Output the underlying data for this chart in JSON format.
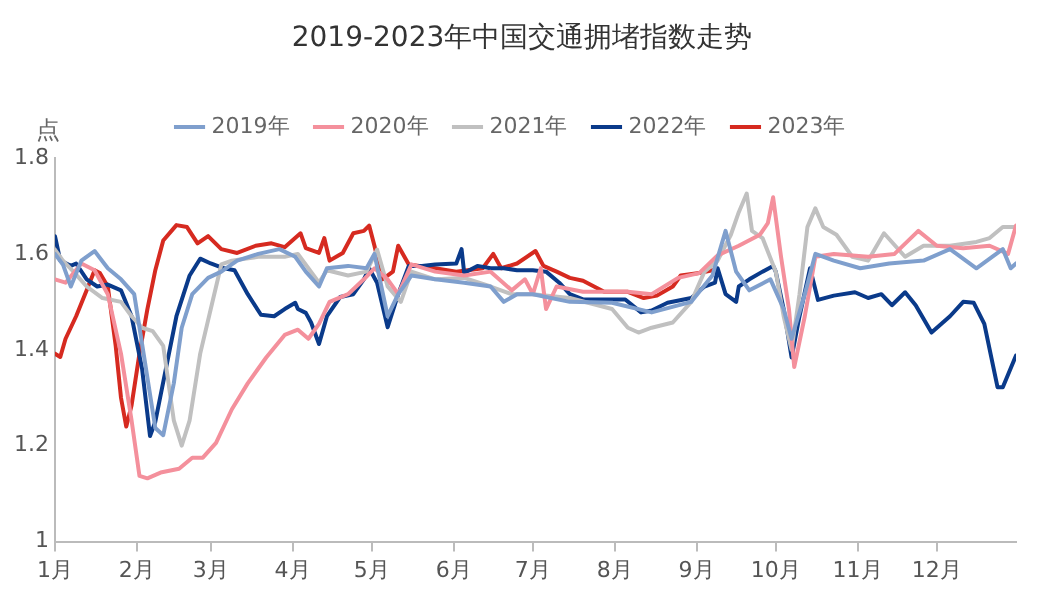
{
  "chart_data": {
    "type": "line",
    "title": "2019-2023年中国交通拥堵指数走势",
    "ylabel": "点",
    "xlim": [
      "--01-01",
      "--12-31"
    ],
    "xticks": [
      {
        "value": "--01-01",
        "label": "1月"
      },
      {
        "value": "--02-01",
        "label": "2月"
      },
      {
        "value": "--03-01",
        "label": "3月"
      },
      {
        "value": "--04-01",
        "label": "4月"
      },
      {
        "value": "--05-01",
        "label": "5月"
      },
      {
        "value": "--06-01",
        "label": "6月"
      },
      {
        "value": "--07-01",
        "label": "7月"
      },
      {
        "value": "--08-01",
        "label": "8月"
      },
      {
        "value": "--09-01",
        "label": "9月"
      },
      {
        "value": "--10-01",
        "label": "10月"
      },
      {
        "value": "--11-01",
        "label": "11月"
      },
      {
        "value": "--12-01",
        "label": "12月"
      }
    ],
    "ylim": [
      1,
      1.8
    ],
    "yticks": [
      1,
      1.2,
      1.4,
      1.6,
      1.8
    ],
    "grid": false,
    "legend": "top",
    "marker": "none",
    "line_style": "solid",
    "series": [
      {
        "name": "2019年",
        "color": "#7f9fcd",
        "x": [
          "--01-01",
          "--01-04",
          "--01-07",
          "--01-11",
          "--01-16",
          "--01-21",
          "--01-26",
          "--01-31",
          "--02-04",
          "--02-08",
          "--02-11",
          "--02-15",
          "--02-18",
          "--02-22",
          "--02-28",
          "--03-05",
          "--03-11",
          "--03-19",
          "--03-27",
          "--04-02",
          "--04-06",
          "--04-11",
          "--04-14",
          "--04-22",
          "--04-29",
          "--05-02",
          "--05-07",
          "--05-11",
          "--05-16",
          "--05-25",
          "--06-05",
          "--06-15",
          "--06-20",
          "--06-25",
          "--07-01",
          "--07-15",
          "--07-31",
          "--08-15",
          "--08-30",
          "--09-07",
          "--09-12",
          "--09-16",
          "--09-21",
          "--09-29",
          "--10-04",
          "--10-07",
          "--10-12",
          "--10-16",
          "--10-23",
          "--11-02",
          "--11-13",
          "--11-26",
          "--12-06",
          "--12-16",
          "--12-26",
          "--12-29",
          "--12-31"
        ],
        "values": [
          1.6,
          1.578,
          1.532,
          1.586,
          1.606,
          1.57,
          1.547,
          1.516,
          1.377,
          1.237,
          1.222,
          1.33,
          1.446,
          1.516,
          1.55,
          1.563,
          1.586,
          1.6,
          1.61,
          1.594,
          1.563,
          1.532,
          1.57,
          1.575,
          1.57,
          1.6,
          1.47,
          1.516,
          1.555,
          1.547,
          1.54,
          1.532,
          1.5,
          1.516,
          1.516,
          1.5,
          1.498,
          1.478,
          1.5,
          1.555,
          1.648,
          1.563,
          1.524,
          1.547,
          1.485,
          1.423,
          1.516,
          1.6,
          1.586,
          1.57,
          1.58,
          1.586,
          1.61,
          1.57,
          1.61,
          1.57,
          1.58
        ]
      },
      {
        "name": "2020年",
        "color": "#f4909c",
        "x": [
          "--01-01",
          "--01-05",
          "--01-11",
          "--01-16",
          "--01-21",
          "--01-26",
          "--01-30",
          "--02-02",
          "--02-05",
          "--02-10",
          "--02-17",
          "--02-22",
          "--02-26",
          "--03-03",
          "--03-09",
          "--03-15",
          "--03-22",
          "--03-29",
          "--04-03",
          "--04-07",
          "--04-11",
          "--04-15",
          "--04-22",
          "--04-28",
          "--05-02",
          "--05-07",
          "--05-11",
          "--05-16",
          "--05-25",
          "--06-05",
          "--06-15",
          "--06-23",
          "--06-28",
          "--07-01",
          "--07-04",
          "--07-06",
          "--07-10",
          "--07-20",
          "--08-06",
          "--08-15",
          "--08-25",
          "--09-02",
          "--09-09",
          "--09-17",
          "--09-25",
          "--09-28",
          "--09-30",
          "--10-03",
          "--10-06",
          "--10-08",
          "--10-12",
          "--10-16",
          "--10-23",
          "--11-05",
          "--11-15",
          "--11-24",
          "--12-01",
          "--12-11",
          "--12-21",
          "--12-28",
          "--12-31"
        ],
        "values": [
          1.547,
          1.54,
          1.58,
          1.566,
          1.516,
          1.392,
          1.253,
          1.137,
          1.132,
          1.144,
          1.152,
          1.175,
          1.175,
          1.206,
          1.276,
          1.33,
          1.384,
          1.431,
          1.442,
          1.423,
          1.454,
          1.5,
          1.516,
          1.547,
          1.57,
          1.547,
          1.516,
          1.578,
          1.563,
          1.555,
          1.563,
          1.524,
          1.547,
          1.516,
          1.57,
          1.485,
          1.532,
          1.521,
          1.521,
          1.516,
          1.55,
          1.56,
          1.597,
          1.617,
          1.64,
          1.664,
          1.718,
          1.594,
          1.485,
          1.364,
          1.47,
          1.594,
          1.6,
          1.594,
          1.6,
          1.648,
          1.617,
          1.612,
          1.617,
          1.6,
          1.659
        ]
      },
      {
        "name": "2021年",
        "color": "#c0c0c0",
        "x": [
          "--01-01",
          "--01-04",
          "--01-08",
          "--01-13",
          "--01-19",
          "--01-26",
          "--01-30",
          "--02-03",
          "--02-07",
          "--02-11",
          "--02-15",
          "--02-18",
          "--02-21",
          "--02-25",
          "--03-01",
          "--03-05",
          "--03-09",
          "--03-19",
          "--03-29",
          "--04-03",
          "--04-09",
          "--04-11",
          "--04-14",
          "--04-22",
          "--04-29",
          "--05-03",
          "--05-07",
          "--05-12",
          "--05-16",
          "--05-25",
          "--06-05",
          "--06-15",
          "--06-23",
          "--07-01",
          "--07-15",
          "--07-31",
          "--08-06",
          "--08-10",
          "--08-15",
          "--08-23",
          "--08-30",
          "--09-04",
          "--09-09",
          "--09-14",
          "--09-17",
          "--09-20",
          "--09-22",
          "--09-26",
          "--10-01",
          "--10-04",
          "--10-07",
          "--10-10",
          "--10-13",
          "--10-16",
          "--10-19",
          "--10-24",
          "--10-30",
          "--11-05",
          "--11-11",
          "--11-19",
          "--11-26",
          "--12-06",
          "--12-16",
          "--12-21",
          "--12-26",
          "--12-31"
        ],
        "values": [
          1.609,
          1.586,
          1.563,
          1.532,
          1.508,
          1.5,
          1.47,
          1.446,
          1.439,
          1.408,
          1.253,
          1.2,
          1.253,
          1.392,
          1.485,
          1.578,
          1.586,
          1.594,
          1.594,
          1.6,
          1.555,
          1.54,
          1.566,
          1.555,
          1.563,
          1.609,
          1.532,
          1.5,
          1.563,
          1.547,
          1.55,
          1.532,
          1.516,
          1.516,
          1.508,
          1.485,
          1.446,
          1.436,
          1.446,
          1.457,
          1.5,
          1.563,
          1.586,
          1.64,
          1.687,
          1.726,
          1.648,
          1.633,
          1.563,
          1.47,
          1.4,
          1.516,
          1.656,
          1.695,
          1.656,
          1.64,
          1.594,
          1.586,
          1.643,
          1.594,
          1.617,
          1.617,
          1.625,
          1.633,
          1.656,
          1.656
        ]
      },
      {
        "name": "2022年",
        "color": "#0a3a8a",
        "x": [
          "--01-01",
          "--01-03",
          "--01-07",
          "--01-09",
          "--01-13",
          "--01-17",
          "--01-21",
          "--01-26",
          "--01-30",
          "--02-03",
          "--02-06",
          "--02-08",
          "--02-12",
          "--02-16",
          "--02-21",
          "--02-25",
          "--03-01",
          "--03-06",
          "--03-10",
          "--03-15",
          "--03-20",
          "--03-25",
          "--03-29",
          "--04-02",
          "--04-03",
          "--04-06",
          "--04-08",
          "--04-11",
          "--04-14",
          "--04-19",
          "--04-24",
          "--04-28",
          "--04-30",
          "--05-03",
          "--05-07",
          "--05-11",
          "--05-15",
          "--05-20",
          "--05-25",
          "--06-02",
          "--06-04",
          "--06-05",
          "--06-10",
          "--06-15",
          "--06-20",
          "--06-25",
          "--07-01",
          "--07-06",
          "--07-11",
          "--07-15",
          "--07-20",
          "--08-05",
          "--08-11",
          "--08-15",
          "--08-21",
          "--08-30",
          "--09-04",
          "--09-08",
          "--09-09",
          "--09-12",
          "--09-16",
          "--09-17",
          "--09-21",
          "--09-26",
          "--09-30",
          "--10-01",
          "--10-04",
          "--10-07",
          "--10-10",
          "--10-14",
          "--10-17",
          "--10-23",
          "--10-31",
          "--11-05",
          "--11-10",
          "--11-14",
          "--11-19",
          "--11-23",
          "--11-29",
          "--12-06",
          "--12-11",
          "--12-15",
          "--12-19",
          "--12-24",
          "--12-26",
          "--12-31"
        ],
        "values": [
          1.637,
          1.586,
          1.575,
          1.58,
          1.547,
          1.532,
          1.536,
          1.524,
          1.47,
          1.36,
          1.22,
          1.25,
          1.36,
          1.47,
          1.555,
          1.59,
          1.58,
          1.57,
          1.566,
          1.516,
          1.473,
          1.47,
          1.485,
          1.498,
          1.485,
          1.477,
          1.457,
          1.412,
          1.47,
          1.51,
          1.516,
          1.547,
          1.57,
          1.54,
          1.447,
          1.516,
          1.575,
          1.575,
          1.578,
          1.58,
          1.61,
          1.56,
          1.575,
          1.57,
          1.57,
          1.566,
          1.566,
          1.563,
          1.54,
          1.516,
          1.505,
          1.505,
          1.478,
          1.482,
          1.498,
          1.508,
          1.532,
          1.54,
          1.57,
          1.516,
          1.5,
          1.532,
          1.547,
          1.563,
          1.575,
          1.563,
          1.485,
          1.384,
          1.47,
          1.57,
          1.504,
          1.513,
          1.52,
          1.508,
          1.516,
          1.493,
          1.52,
          1.493,
          1.436,
          1.47,
          1.5,
          1.498,
          1.454,
          1.322,
          1.322,
          1.388
        ]
      },
      {
        "name": "2023年",
        "color": "#d62a20",
        "x": [
          "--01-01",
          "--01-03",
          "--01-05",
          "--01-09",
          "--01-13",
          "--01-16",
          "--01-18",
          "--01-21",
          "--01-24",
          "--01-26",
          "--01-28",
          "--01-30",
          "--02-02",
          "--02-05",
          "--02-08",
          "--02-11",
          "--02-16",
          "--02-20",
          "--02-24",
          "--02-28",
          "--03-05",
          "--03-11",
          "--03-18",
          "--03-24",
          "--03-29",
          "--04-04",
          "--04-06",
          "--04-11",
          "--04-13",
          "--04-15",
          "--04-20",
          "--04-24",
          "--04-28",
          "--04-30",
          "--05-02",
          "--05-05",
          "--05-09",
          "--05-11",
          "--05-15",
          "--05-25",
          "--06-02",
          "--06-12",
          "--06-16",
          "--06-19",
          "--06-25",
          "--07-02",
          "--07-05",
          "--07-10",
          "--07-15",
          "--07-20",
          "--07-28",
          "--08-06",
          "--08-12",
          "--08-17",
          "--08-23",
          "--08-26",
          "--09-02",
          "--09-07"
        ],
        "values": [
          1.392,
          1.385,
          1.423,
          1.47,
          1.524,
          1.566,
          1.56,
          1.532,
          1.408,
          1.3,
          1.24,
          1.284,
          1.392,
          1.485,
          1.566,
          1.628,
          1.66,
          1.656,
          1.622,
          1.637,
          1.61,
          1.602,
          1.617,
          1.622,
          1.614,
          1.643,
          1.612,
          1.602,
          1.633,
          1.586,
          1.602,
          1.643,
          1.648,
          1.659,
          1.617,
          1.547,
          1.563,
          1.617,
          1.578,
          1.57,
          1.563,
          1.57,
          1.6,
          1.57,
          1.58,
          1.606,
          1.575,
          1.563,
          1.55,
          1.544,
          1.521,
          1.521,
          1.508,
          1.513,
          1.532,
          1.555,
          1.56,
          1.566
        ]
      }
    ]
  }
}
